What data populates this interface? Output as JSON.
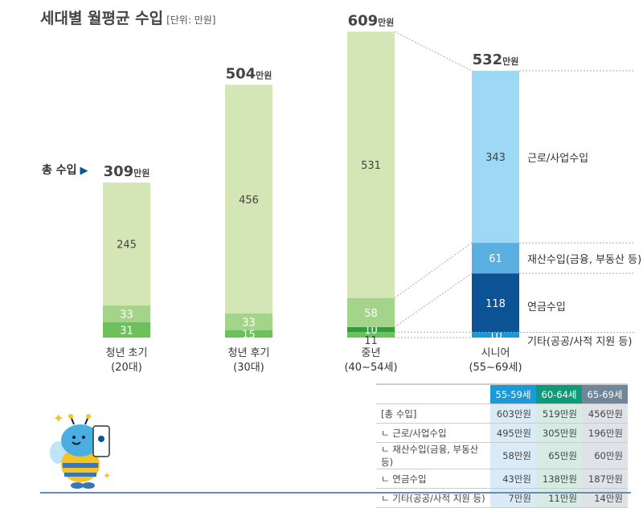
{
  "title": "세대별 월평균 수입",
  "unit": "[단위: 만원]",
  "total_label": "총 수입",
  "chart_data": {
    "type": "bar",
    "stacked": true,
    "title": "세대별 월평균 수입",
    "unit": "만원",
    "ylim": [
      0,
      609
    ],
    "groups": [
      {
        "name": "청년 초기",
        "sub": "(20대)",
        "total": 309,
        "total_text": "309",
        "segments": [
          {
            "value": 31,
            "color": "#6cc15a"
          },
          {
            "value": 33,
            "color": "#a3d48a"
          },
          {
            "value": 245,
            "color": "#d4e6b5"
          }
        ]
      },
      {
        "name": "청년 후기",
        "sub": "(30대)",
        "total": 504,
        "total_text": "504",
        "segments": [
          {
            "value": 15,
            "color": "#6cc15a"
          },
          {
            "value": 33,
            "color": "#a3d48a"
          },
          {
            "value": 456,
            "color": "#d4e6b5"
          }
        ]
      },
      {
        "name": "중년",
        "sub": "(40~54세)",
        "total": 609,
        "total_text": "609",
        "segments": [
          {
            "value": 11,
            "color": "#6cc15a"
          },
          {
            "value": 10,
            "color": "#2e9e3e"
          },
          {
            "value": 58,
            "color": "#a3d48a"
          },
          {
            "value": 531,
            "color": "#d4e6b5"
          }
        ]
      },
      {
        "name": "시니어",
        "sub": "(55~69세)",
        "total": 532,
        "total_text": "532",
        "segments": [
          {
            "value": 10,
            "color": "#1a9ad6"
          },
          {
            "value": 118,
            "color": "#0b5394"
          },
          {
            "value": 61,
            "color": "#5aafe0"
          },
          {
            "value": 343,
            "color": "#9dd8f5"
          }
        ]
      }
    ],
    "total_suffix": "만원",
    "senior_legend": [
      "기타(공공/사적 지원 등)",
      "연금수입",
      "재산수입(금융, 부동산 등)",
      "근로/사업수입"
    ]
  },
  "table": {
    "headers": [
      "55-59세",
      "60-64세",
      "65-69세"
    ],
    "header_colors": [
      "#1a9ad6",
      "#0f9a7a",
      "#6f8799"
    ],
    "rows": [
      {
        "label": "[총 수입]",
        "values": [
          "603만원",
          "519만원",
          "456만원"
        ]
      },
      {
        "label": "ㄴ 근로/사업수입",
        "values": [
          "495만원",
          "305만원",
          "196만원"
        ]
      },
      {
        "label": "ㄴ 재산수입(금융, 부동산 등)",
        "values": [
          "58만원",
          "65만원",
          "60만원"
        ]
      },
      {
        "label": "ㄴ 연금수입",
        "values": [
          "43만원",
          "138만원",
          "187만원"
        ]
      },
      {
        "label": "ㄴ 기타(공공/사적 지원 등)",
        "values": [
          "7만원",
          "11만원",
          "14만원"
        ]
      }
    ]
  }
}
